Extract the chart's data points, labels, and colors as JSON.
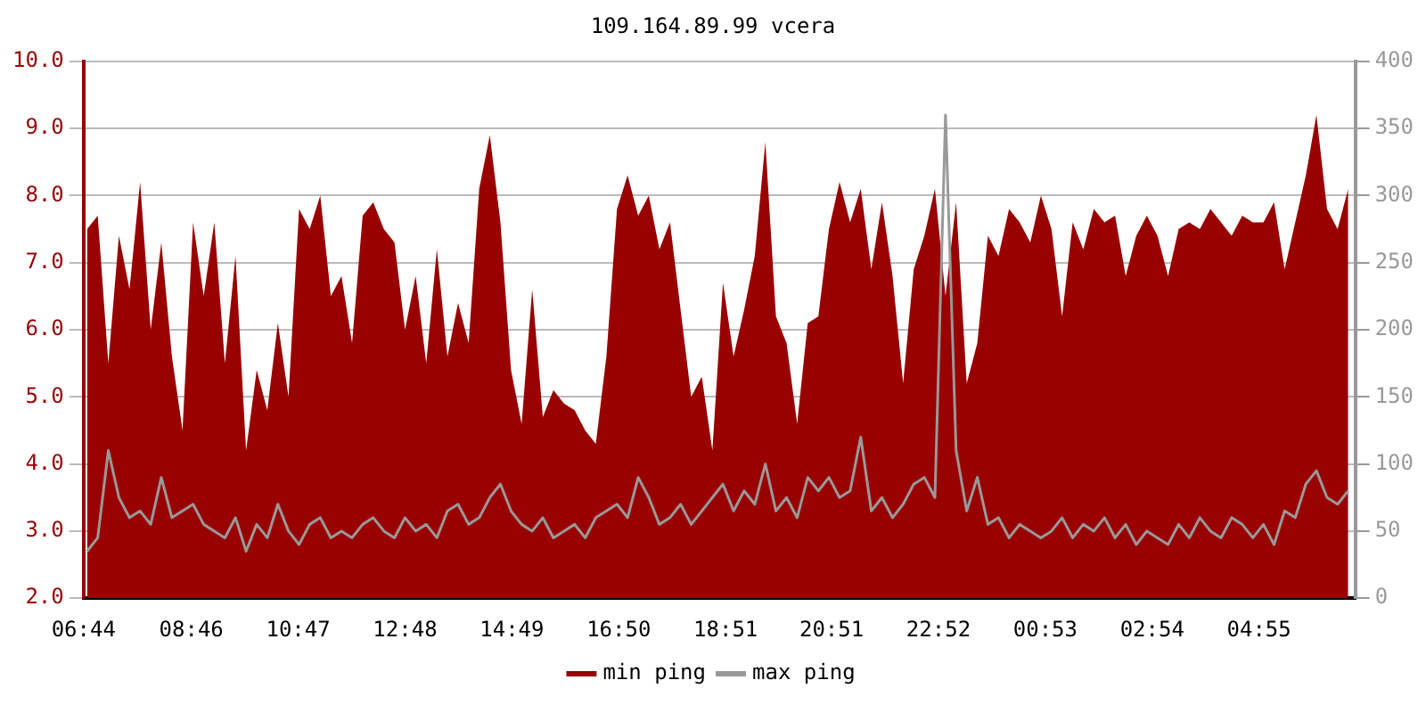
{
  "chart_data": {
    "type": "area",
    "title": "109.164.89.99 vcera",
    "x": [
      "--01-01T06:48",
      "--01-01T07:00",
      "--01-01T07:12",
      "--01-01T07:24",
      "--01-01T07:36",
      "--01-01T07:48",
      "--01-01T08:00",
      "--01-01T08:12",
      "--01-01T08:24",
      "--01-01T08:36",
      "--01-01T08:48",
      "--01-01T09:00",
      "--01-01T09:12",
      "--01-01T09:24",
      "--01-01T09:36",
      "--01-01T09:48",
      "--01-01T10:00",
      "--01-01T10:12",
      "--01-01T10:24",
      "--01-01T10:36",
      "--01-01T10:48",
      "--01-01T11:00",
      "--01-01T11:12",
      "--01-01T11:24",
      "--01-01T11:36",
      "--01-01T11:48",
      "--01-01T12:00",
      "--01-01T12:12",
      "--01-01T12:24",
      "--01-01T12:36",
      "--01-01T12:48",
      "--01-01T13:00",
      "--01-01T13:12",
      "--01-01T13:24",
      "--01-01T13:36",
      "--01-01T13:48",
      "--01-01T14:00",
      "--01-01T14:12",
      "--01-01T14:24",
      "--01-01T14:36",
      "--01-01T14:48",
      "--01-01T15:00",
      "--01-01T15:12",
      "--01-01T15:24",
      "--01-01T15:36",
      "--01-01T15:48",
      "--01-01T16:00",
      "--01-01T16:12",
      "--01-01T16:24",
      "--01-01T16:36",
      "--01-01T16:48",
      "--01-01T17:00",
      "--01-01T17:12",
      "--01-01T17:24",
      "--01-01T17:36",
      "--01-01T17:48",
      "--01-01T18:00",
      "--01-01T18:12",
      "--01-01T18:24",
      "--01-01T18:36",
      "--01-01T18:48",
      "--01-01T19:00",
      "--01-01T19:12",
      "--01-01T19:24",
      "--01-01T19:36",
      "--01-01T19:48",
      "--01-01T20:00",
      "--01-01T20:12",
      "--01-01T20:24",
      "--01-01T20:36",
      "--01-01T20:48",
      "--01-01T21:00",
      "--01-01T21:12",
      "--01-01T21:24",
      "--01-01T21:36",
      "--01-01T21:48",
      "--01-01T22:00",
      "--01-01T22:12",
      "--01-01T22:24",
      "--01-01T22:36",
      "--01-01T22:48",
      "--01-01T23:00",
      "--01-01T23:12",
      "--01-01T23:24",
      "--01-01T23:36",
      "--01-01T23:48",
      "--01-02T00:00",
      "--01-02T00:12",
      "--01-02T00:24",
      "--01-02T00:36",
      "--01-02T00:48",
      "--01-02T01:00",
      "--01-02T01:12",
      "--01-02T01:24",
      "--01-02T01:36",
      "--01-02T01:48",
      "--01-02T02:00",
      "--01-02T02:12",
      "--01-02T02:24",
      "--01-02T02:36",
      "--01-02T02:48",
      "--01-02T03:00",
      "--01-02T03:12",
      "--01-02T03:24",
      "--01-02T03:36",
      "--01-02T03:48",
      "--01-02T04:00",
      "--01-02T04:12",
      "--01-02T04:24",
      "--01-02T04:36",
      "--01-02T04:48",
      "--01-02T05:00",
      "--01-02T05:12",
      "--01-02T05:24",
      "--01-02T05:36",
      "--01-02T05:48",
      "--01-02T06:00",
      "--01-02T06:12",
      "--01-02T06:24",
      "--01-02T06:36"
    ],
    "series": [
      {
        "name": "min ping",
        "color": "#990000",
        "values": [
          7.5,
          7.7,
          5.5,
          7.4,
          6.6,
          8.2,
          6.0,
          7.3,
          5.6,
          4.5,
          7.6,
          6.5,
          7.6,
          5.5,
          7.1,
          4.2,
          5.4,
          4.8,
          6.1,
          5.0,
          7.8,
          7.5,
          8.0,
          6.5,
          6.8,
          5.8,
          7.7,
          7.9,
          7.5,
          7.3,
          6.0,
          6.8,
          5.5,
          7.2,
          5.6,
          6.4,
          5.8,
          8.1,
          8.9,
          7.6,
          5.4,
          4.6,
          6.6,
          4.7,
          5.1,
          4.9,
          4.8,
          4.5,
          4.3,
          5.6,
          7.8,
          8.3,
          7.7,
          8.0,
          7.2,
          7.6,
          6.3,
          5.0,
          5.3,
          4.2,
          6.7,
          5.6,
          6.3,
          7.1,
          8.8,
          6.2,
          5.8,
          4.6,
          6.1,
          6.2,
          7.5,
          8.2,
          7.6,
          8.1,
          6.9,
          7.9,
          6.8,
          5.2,
          6.9,
          7.4,
          8.1,
          6.5,
          7.9,
          5.2,
          5.8,
          7.4,
          7.1,
          7.8,
          7.6,
          7.3,
          8.0,
          7.5,
          6.2,
          7.6,
          7.2,
          7.8,
          7.6,
          7.7,
          6.8,
          7.4,
          7.7,
          7.4,
          6.8,
          7.5,
          7.6,
          7.5,
          7.8,
          7.6,
          7.4,
          7.7,
          7.6,
          7.6,
          7.9,
          6.9,
          7.6,
          8.3,
          9.2,
          7.8,
          7.5,
          8.1
        ]
      },
      {
        "name": "max ping",
        "type": "line",
        "axis": "y2",
        "color": "#999999",
        "values": [
          35,
          45,
          110,
          75,
          60,
          65,
          55,
          90,
          60,
          65,
          70,
          55,
          50,
          45,
          60,
          35,
          55,
          45,
          70,
          50,
          40,
          55,
          60,
          45,
          50,
          45,
          55,
          60,
          50,
          45,
          60,
          50,
          55,
          45,
          65,
          70,
          55,
          60,
          75,
          85,
          65,
          55,
          50,
          60,
          45,
          50,
          55,
          45,
          60,
          65,
          70,
          60,
          90,
          75,
          55,
          60,
          70,
          55,
          65,
          75,
          85,
          65,
          80,
          70,
          100,
          65,
          75,
          60,
          90,
          80,
          90,
          75,
          80,
          120,
          65,
          75,
          60,
          70,
          85,
          90,
          75,
          360,
          110,
          65,
          90,
          55,
          60,
          45,
          55,
          50,
          45,
          50,
          60,
          45,
          55,
          50,
          60,
          45,
          55,
          40,
          50,
          45,
          40,
          55,
          45,
          60,
          50,
          45,
          60,
          55,
          45,
          55,
          40,
          65,
          60,
          85,
          95,
          75,
          70,
          80
        ]
      }
    ],
    "xlim": [
      "--01-01T06:44",
      "--01-02T06:44"
    ],
    "xticks": [
      {
        "value": "--01-01T06:44",
        "label": "06:44"
      },
      {
        "value": "--01-01T08:46",
        "label": "08:46"
      },
      {
        "value": "--01-01T10:47",
        "label": "10:47"
      },
      {
        "value": "--01-01T12:48",
        "label": "12:48"
      },
      {
        "value": "--01-01T14:49",
        "label": "14:49"
      },
      {
        "value": "--01-01T16:50",
        "label": "16:50"
      },
      {
        "value": "--01-01T18:51",
        "label": "18:51"
      },
      {
        "value": "--01-01T20:51",
        "label": "20:51"
      },
      {
        "value": "--01-01T22:52",
        "label": "22:52"
      },
      {
        "value": "--01-02T00:53",
        "label": "00:53"
      },
      {
        "value": "--01-02T02:54",
        "label": "02:54"
      },
      {
        "value": "--01-02T04:55",
        "label": "04:55"
      }
    ],
    "ylim": [
      2,
      10
    ],
    "yticks": [
      {
        "value": 2,
        "label": "2.0"
      },
      {
        "value": 3,
        "label": "3.0"
      },
      {
        "value": 4,
        "label": "4.0"
      },
      {
        "value": 5,
        "label": "5.0"
      },
      {
        "value": 6,
        "label": "6.0"
      },
      {
        "value": 7,
        "label": "7.0"
      },
      {
        "value": 8,
        "label": "8.0"
      },
      {
        "value": 9,
        "label": "9.0"
      },
      {
        "value": 10,
        "label": "10.0"
      }
    ],
    "y2lim": [
      0,
      400
    ],
    "y2ticks": [
      0,
      50,
      100,
      150,
      200,
      250,
      300,
      350,
      400
    ],
    "grid": "y",
    "legend": "bottom",
    "marker": "none"
  }
}
